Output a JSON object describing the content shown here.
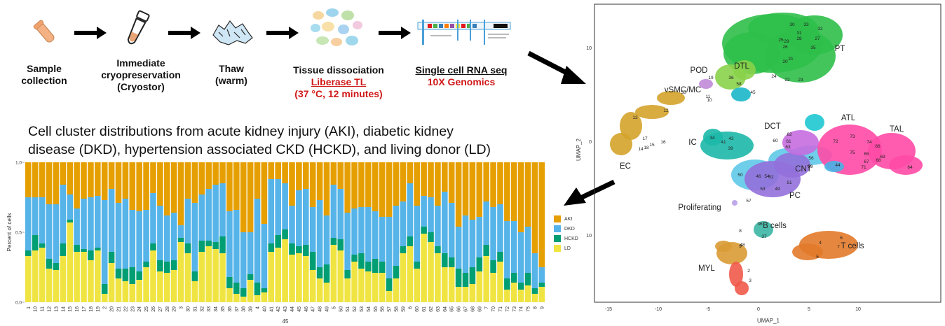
{
  "workflow": {
    "steps": [
      {
        "line1": "Sample",
        "line2": "collection",
        "line3": ""
      },
      {
        "line1": "Immediate",
        "line2": "cryopreservation",
        "line3": "(Cryostor)"
      },
      {
        "line1": "Thaw",
        "line2": "(warm)",
        "line3": ""
      },
      {
        "line1": "Tissue dissociation",
        "line2": "Liberase TL",
        "line3": "(37 °C, 12 minutes)"
      },
      {
        "line1": "Single cell RNA seq",
        "line2": "10X Genomics",
        "line3": ""
      }
    ]
  },
  "heading": {
    "line1": "Cell cluster distributions from acute kidney injury (AKI), diabetic kidney",
    "line2": "disease (DKD), hypertension associated CKD (HCKD), and living donor (LD)"
  },
  "chart_data": {
    "type": "bar",
    "stacked": true,
    "ylabel": "Percent of cells",
    "xlabel": "45",
    "ylim": [
      0,
      1
    ],
    "yticks": [
      "0.0",
      "0.5",
      "1.0"
    ],
    "categories": [
      "1",
      "10",
      "11",
      "12",
      "13",
      "14",
      "15",
      "16",
      "17",
      "18",
      "19",
      "2",
      "20",
      "21",
      "22",
      "23",
      "24",
      "25",
      "26",
      "27",
      "28",
      "29",
      "3",
      "30",
      "31",
      "32",
      "33",
      "34",
      "35",
      "36",
      "37",
      "38",
      "39",
      "4",
      "40",
      "41",
      "42",
      "43",
      "44",
      "45",
      "46",
      "47",
      "48",
      "49",
      "5",
      "50",
      "51",
      "52",
      "53",
      "54",
      "55",
      "56",
      "57",
      "58",
      "59",
      "6",
      "60",
      "61",
      "62",
      "63",
      "64",
      "65",
      "66",
      "67",
      "68",
      "69",
      "7",
      "70",
      "71",
      "72",
      "73",
      "74",
      "75",
      "8",
      "9"
    ],
    "legend": [
      "AKI",
      "DKD",
      "HCKD",
      "LD"
    ],
    "series": [
      {
        "name": "LD",
        "color": "#f0e442",
        "values": [
          0.33,
          0.37,
          0.39,
          0.24,
          0.23,
          0.33,
          0.57,
          0.36,
          0.36,
          0.3,
          0.37,
          0.06,
          0.28,
          0.17,
          0.15,
          0.13,
          0.16,
          0.25,
          0.37,
          0.22,
          0.21,
          0.23,
          0.43,
          0.35,
          0.15,
          0.36,
          0.4,
          0.38,
          0.35,
          0.1,
          0.06,
          0.04,
          0.16,
          0.05,
          0.07,
          0.36,
          0.39,
          0.45,
          0.34,
          0.35,
          0.33,
          0.23,
          0.17,
          0.14,
          0.41,
          0.37,
          0.17,
          0.29,
          0.24,
          0.22,
          0.21,
          0.21,
          0.08,
          0.17,
          0.35,
          0.4,
          0.24,
          0.49,
          0.43,
          0.35,
          0.25,
          0.25,
          0.11,
          0.11,
          0.13,
          0.22,
          0.33,
          0.21,
          0.29,
          0.09,
          0.14,
          0.09,
          0.12,
          0.06,
          0.11
        ]
      },
      {
        "name": "HCKD",
        "color": "#009e73",
        "values": [
          0.04,
          0.11,
          0.03,
          0.07,
          0.05,
          0.09,
          0.02,
          0.05,
          0.02,
          0.07,
          0.02,
          0.07,
          0.08,
          0.07,
          0.09,
          0.12,
          0.06,
          0.04,
          0.05,
          0.08,
          0.08,
          0.07,
          0.03,
          0.07,
          0.07,
          0.08,
          0.04,
          0.05,
          0.12,
          0.08,
          0.08,
          0.06,
          0.04,
          0.09,
          0.03,
          0.06,
          0.09,
          0.07,
          0.08,
          0.05,
          0.08,
          0.13,
          0.08,
          0.13,
          0.05,
          0.08,
          0.06,
          0.05,
          0.11,
          0.07,
          0.1,
          0.08,
          0.09,
          0.09,
          0.05,
          0.07,
          0.05,
          0.05,
          0.07,
          0.05,
          0.1,
          0.07,
          0.13,
          0.1,
          0.12,
          0.1,
          0.08,
          0.09,
          0.07,
          0.08,
          0.07,
          0.05,
          0.09,
          0.04,
          0.03
        ]
      },
      {
        "name": "DKD",
        "color": "#56b4e9",
        "values": [
          0.38,
          0.27,
          0.33,
          0.39,
          0.42,
          0.42,
          0.18,
          0.26,
          0.36,
          0.38,
          0.37,
          0.6,
          0.45,
          0.47,
          0.5,
          0.41,
          0.43,
          0.37,
          0.36,
          0.39,
          0.33,
          0.34,
          0.09,
          0.32,
          0.49,
          0.33,
          0.37,
          0.41,
          0.38,
          0.47,
          0.52,
          0.4,
          0.3,
          0.6,
          0.46,
          0.46,
          0.4,
          0.33,
          0.27,
          0.4,
          0.4,
          0.32,
          0.48,
          0.35,
          0.38,
          0.36,
          0.41,
          0.33,
          0.33,
          0.39,
          0.34,
          0.32,
          0.44,
          0.43,
          0.32,
          0.38,
          0.4,
          0.22,
          0.25,
          0.29,
          0.44,
          0.39,
          0.3,
          0.41,
          0.34,
          0.29,
          0.31,
          0.38,
          0.34,
          0.41,
          0.37,
          0.36,
          0.33,
          0.25,
          0.11
        ]
      },
      {
        "name": "AKI",
        "color": "#e69f00",
        "values": [
          0.25,
          0.25,
          0.25,
          0.3,
          0.3,
          0.16,
          0.23,
          0.33,
          0.26,
          0.25,
          0.24,
          0.27,
          0.19,
          0.29,
          0.26,
          0.34,
          0.35,
          0.34,
          0.22,
          0.31,
          0.38,
          0.36,
          0.45,
          0.26,
          0.29,
          0.23,
          0.19,
          0.16,
          0.15,
          0.35,
          0.34,
          0.5,
          0.5,
          0.26,
          0.44,
          0.12,
          0.12,
          0.15,
          0.31,
          0.2,
          0.19,
          0.32,
          0.27,
          0.38,
          0.16,
          0.19,
          0.36,
          0.33,
          0.32,
          0.32,
          0.35,
          0.39,
          0.39,
          0.31,
          0.28,
          0.15,
          0.31,
          0.24,
          0.25,
          0.31,
          0.21,
          0.29,
          0.46,
          0.38,
          0.41,
          0.39,
          0.28,
          0.32,
          0.3,
          0.42,
          0.42,
          0.5,
          0.46,
          0.65,
          0.75
        ]
      }
    ]
  },
  "umap": {
    "xlabel": "UMAP_1",
    "ylabel": "UMAP_2",
    "xticks": [
      "-15",
      "-10",
      "-5",
      "0",
      "5",
      "10"
    ],
    "yticks": [
      "10",
      "0",
      "10"
    ],
    "cluster_labels": [
      "PT",
      "DTL",
      "POD",
      "vSMC/MC",
      "EC",
      "IC",
      "DCT",
      "ATL",
      "TAL",
      "CNT",
      "PC",
      "Proliferating",
      "B cells",
      "T cells",
      "MYL"
    ],
    "cluster_numbers": [
      "30",
      "33",
      "32",
      "31",
      "28",
      "25",
      "29",
      "26",
      "27",
      "35",
      "20",
      "21",
      "24",
      "22",
      "23",
      "45",
      "58",
      "36",
      "19",
      "10",
      "11",
      "55",
      "12",
      "13",
      "17",
      "14",
      "18",
      "15",
      "16",
      "34",
      "42",
      "41",
      "39",
      "60",
      "61",
      "63",
      "62",
      "72",
      "73",
      "74",
      "75",
      "65",
      "66",
      "67",
      "68",
      "69",
      "64",
      "71",
      "44",
      "59",
      "56",
      "50",
      "54",
      "52",
      "53",
      "49",
      "46",
      "51",
      "57",
      "8",
      "36",
      "37",
      "48",
      "6",
      "4",
      "5",
      "7",
      "9",
      "2",
      "3"
    ]
  }
}
